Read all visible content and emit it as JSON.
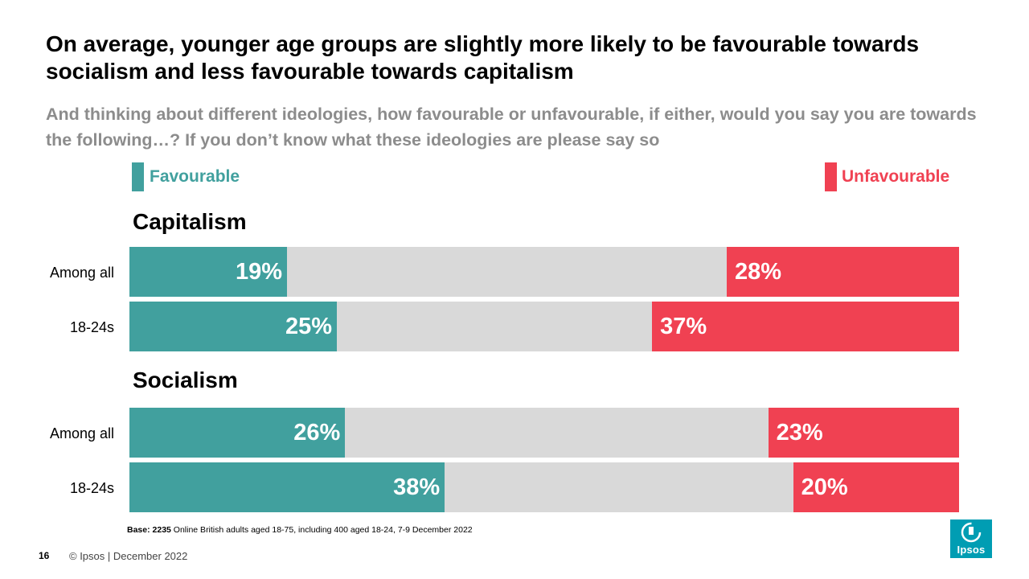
{
  "title": "On average, younger age groups are slightly more likely to be favourable towards socialism and less favourable towards capitalism",
  "subtitle": "And thinking about different ideologies, how favourable or unfavourable, if either, would you say you are towards the following…? If you don’t know what these ideologies are please say so",
  "legend": {
    "favourable": "Favourable",
    "unfavourable": "Unfavourable"
  },
  "colors": {
    "favourable": "#41a09e",
    "unfavourable": "#f04152",
    "neutral": "#d9d9d9",
    "subtitle": "#8c8c8c",
    "logo": "#009db3"
  },
  "chart_data": {
    "type": "bar",
    "orientation": "horizontal",
    "stacked": true,
    "title": "On average, younger age groups are slightly more likely to be favourable towards socialism and less favourable towards capitalism",
    "series": [
      {
        "name": "Favourable"
      },
      {
        "name": "Unfavourable"
      }
    ],
    "xlim": [
      0,
      100
    ],
    "groups": [
      {
        "name": "Capitalism",
        "rows": [
          {
            "label": "Among all",
            "favourable": 19,
            "unfavourable": 28,
            "favourable_label": "19%",
            "unfavourable_label": "28%"
          },
          {
            "label": "18-24s",
            "favourable": 25,
            "unfavourable": 37,
            "favourable_label": "25%",
            "unfavourable_label": "37%"
          }
        ]
      },
      {
        "name": "Socialism",
        "rows": [
          {
            "label": "Among all",
            "favourable": 26,
            "unfavourable": 23,
            "favourable_label": "26%",
            "unfavourable_label": "23%"
          },
          {
            "label": "18-24s",
            "favourable": 38,
            "unfavourable": 20,
            "favourable_label": "38%",
            "unfavourable_label": "20%"
          }
        ]
      }
    ]
  },
  "footer": {
    "base_bold": "Base: 2235",
    "base_text": " Online British adults aged 18-75, including 400 aged 18-24, 7-9 December 2022",
    "page_number": "16",
    "copyright": "© Ipsos | December 2022",
    "logo_text": "Ipsos"
  }
}
